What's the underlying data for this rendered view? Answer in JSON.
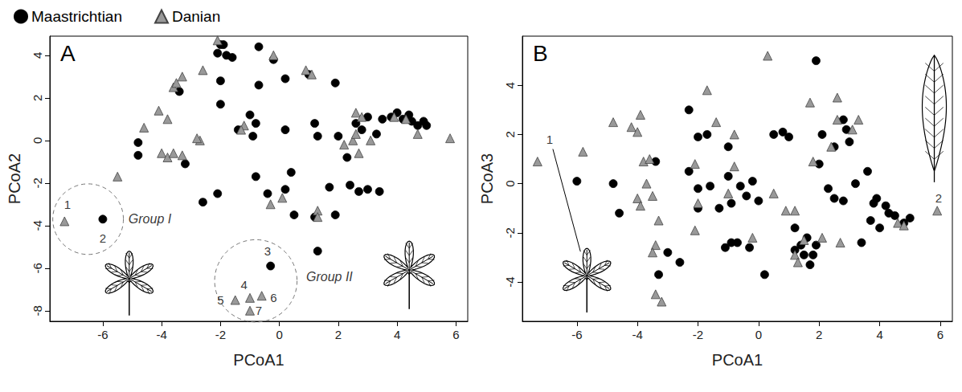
{
  "chart_data": [
    {
      "type": "scatter",
      "title": "A",
      "x_label": "PCoA1",
      "y_label": "PCoA2",
      "xlim": [
        -7.8,
        6.4
      ],
      "ylim": [
        -8.5,
        4.9
      ],
      "xticks": [
        -6,
        -4,
        -2,
        0,
        2,
        4,
        6
      ],
      "yticks": [
        -8,
        -6,
        -4,
        -2,
        0,
        2,
        4
      ],
      "grid": false,
      "legend": "top-left",
      "series": [
        {
          "name": "Maastrichtian",
          "color": "#000000",
          "marker": "circle",
          "values": [
            [
              -2.0,
              4.5
            ],
            [
              -1.9,
              4.5
            ],
            [
              -1.8,
              4.0
            ],
            [
              -1.6,
              3.9
            ],
            [
              -2.1,
              4.1
            ],
            [
              -0.7,
              4.4
            ],
            [
              -0.2,
              3.8
            ],
            [
              -3.4,
              2.3
            ],
            [
              -2.0,
              2.8
            ],
            [
              -0.7,
              2.6
            ],
            [
              0.2,
              2.9
            ],
            [
              1.0,
              3.1
            ],
            [
              1.9,
              2.7
            ],
            [
              -2.0,
              1.7
            ],
            [
              -1.0,
              1.2
            ],
            [
              -0.8,
              0.8
            ],
            [
              -1.4,
              0.5
            ],
            [
              -0.9,
              0.2
            ],
            [
              -4.8,
              -0.1
            ],
            [
              -4.8,
              -0.7
            ],
            [
              -3.2,
              -1.1
            ],
            [
              -0.8,
              -1.7
            ],
            [
              0.2,
              0.5
            ],
            [
              1.2,
              0.8
            ],
            [
              1.3,
              0.2
            ],
            [
              2.0,
              0.2
            ],
            [
              2.3,
              -0.8
            ],
            [
              2.6,
              0.8
            ],
            [
              2.8,
              0.5
            ],
            [
              3.0,
              1.1
            ],
            [
              3.3,
              0.3
            ],
            [
              3.5,
              1.0
            ],
            [
              3.8,
              1.1
            ],
            [
              4.0,
              1.3
            ],
            [
              4.2,
              1.0
            ],
            [
              4.4,
              1.2
            ],
            [
              4.5,
              0.9
            ],
            [
              4.7,
              0.7
            ],
            [
              4.9,
              0.9
            ],
            [
              5.0,
              0.7
            ],
            [
              0.4,
              -1.5
            ],
            [
              0.2,
              -2.3
            ],
            [
              0.5,
              -3.5
            ],
            [
              1.7,
              -2.2
            ],
            [
              1.2,
              -3.6
            ],
            [
              1.9,
              -3.5
            ],
            [
              2.4,
              -2.1
            ],
            [
              2.7,
              -2.4
            ],
            [
              3.0,
              -2.3
            ],
            [
              3.4,
              -2.4
            ],
            [
              1.3,
              -5.2
            ],
            [
              -2.6,
              -2.9
            ],
            [
              -2.1,
              -2.5
            ],
            [
              -6.0,
              -3.7
            ],
            [
              -0.3,
              -5.9
            ],
            [
              -0.4,
              -2.5
            ]
          ]
        },
        {
          "name": "Danian",
          "color": "#999999",
          "marker": "triangle",
          "values": [
            [
              -7.3,
              -3.8
            ],
            [
              -5.5,
              -1.7
            ],
            [
              -4.6,
              0.6
            ],
            [
              -4.1,
              1.4
            ],
            [
              -3.8,
              1.0
            ],
            [
              -3.6,
              2.5
            ],
            [
              -3.5,
              2.7
            ],
            [
              -3.3,
              3.0
            ],
            [
              -2.6,
              3.3
            ],
            [
              -2.1,
              4.7
            ],
            [
              -4.0,
              -0.6
            ],
            [
              -3.8,
              -0.8
            ],
            [
              -3.6,
              -0.6
            ],
            [
              -3.3,
              -0.7
            ],
            [
              -2.7,
              0.0
            ],
            [
              -2.8,
              0.1
            ],
            [
              -1.2,
              0.7
            ],
            [
              -0.2,
              4.0
            ],
            [
              0.9,
              3.3
            ],
            [
              1.1,
              3.1
            ],
            [
              -0.3,
              -3.0
            ],
            [
              0.1,
              -2.7
            ],
            [
              1.3,
              -3.3
            ],
            [
              1.3,
              -3.6
            ],
            [
              2.2,
              -0.2
            ],
            [
              2.6,
              1.3
            ],
            [
              2.7,
              -0.6
            ],
            [
              2.8,
              1.1
            ],
            [
              2.5,
              0.0
            ],
            [
              3.1,
              0.0
            ],
            [
              3.9,
              1.1
            ],
            [
              4.3,
              1.0
            ],
            [
              4.7,
              0.3
            ],
            [
              5.8,
              0.1
            ],
            [
              2.6,
              0.3
            ],
            [
              -1.5,
              -7.5
            ],
            [
              -1.0,
              -7.4
            ],
            [
              -0.6,
              -7.3
            ],
            [
              -1.0,
              -8.0
            ],
            [
              -1.3,
              0.5
            ]
          ]
        }
      ],
      "annotations": [
        {
          "text": "1",
          "x": -7.2,
          "y": -3.0
        },
        {
          "text": "2",
          "x": -6.0,
          "y": -4.6
        },
        {
          "text": "3",
          "x": -0.4,
          "y": -5.2
        },
        {
          "text": "4",
          "x": -1.2,
          "y": -6.8
        },
        {
          "text": "5",
          "x": -2.0,
          "y": -7.5
        },
        {
          "text": "6",
          "x": -0.2,
          "y": -7.4
        },
        {
          "text": "7",
          "x": -0.7,
          "y": -8.0
        }
      ],
      "groups": [
        {
          "text": "Group I",
          "x": -4.4,
          "y": -3.7,
          "center": [
            -6.5,
            -3.7
          ],
          "radius": 1.2
        },
        {
          "text": "Group II",
          "x": 1.7,
          "y": -6.4,
          "center": [
            -0.8,
            -6.6
          ],
          "radius": 1.4
        }
      ]
    },
    {
      "type": "scatter",
      "title": "B",
      "x_label": "PCoA1",
      "y_label": "PCoA3",
      "xlim": [
        -7.8,
        6.4
      ],
      "ylim": [
        -5.6,
        6.0
      ],
      "xticks": [
        -6,
        -4,
        -2,
        0,
        2,
        4,
        6
      ],
      "yticks": [
        -4,
        -2,
        0,
        2,
        4
      ],
      "grid": false,
      "series": [
        {
          "name": "Maastrichtian",
          "color": "#000000",
          "marker": "circle",
          "values": [
            [
              -6.0,
              0.1
            ],
            [
              -4.8,
              0.0
            ],
            [
              -4.6,
              -1.2
            ],
            [
              -3.4,
              0.9
            ],
            [
              -3.3,
              -3.7
            ],
            [
              -3.0,
              -2.8
            ],
            [
              -2.6,
              -3.2
            ],
            [
              -2.3,
              3.0
            ],
            [
              -2.0,
              1.9
            ],
            [
              -1.7,
              2.0
            ],
            [
              -2.3,
              0.5
            ],
            [
              -2.0,
              -0.2
            ],
            [
              -1.6,
              -0.1
            ],
            [
              -2.0,
              -1.0
            ],
            [
              -1.3,
              -1.0
            ],
            [
              -1.0,
              1.5
            ],
            [
              -1.0,
              0.3
            ],
            [
              -0.9,
              -0.8
            ],
            [
              -0.9,
              -2.4
            ],
            [
              -0.6,
              -0.1
            ],
            [
              -0.4,
              -0.5
            ],
            [
              -0.2,
              0.1
            ],
            [
              0.0,
              -0.7
            ],
            [
              -0.3,
              -2.6
            ],
            [
              -0.7,
              -2.4
            ],
            [
              -1.1,
              -2.6
            ],
            [
              0.2,
              -3.7
            ],
            [
              0.5,
              2.0
            ],
            [
              0.8,
              2.1
            ],
            [
              1.0,
              1.9
            ],
            [
              1.2,
              -1.8
            ],
            [
              1.4,
              -2.5
            ],
            [
              1.2,
              -2.7
            ],
            [
              1.5,
              -2.9
            ],
            [
              1.7,
              -3.3
            ],
            [
              1.9,
              -2.5
            ],
            [
              1.6,
              -2.2
            ],
            [
              1.8,
              -2.9
            ],
            [
              1.9,
              5.0
            ],
            [
              2.0,
              0.8
            ],
            [
              2.1,
              2.0
            ],
            [
              2.3,
              -0.2
            ],
            [
              2.5,
              -0.6
            ],
            [
              2.8,
              2.6
            ],
            [
              2.9,
              2.2
            ],
            [
              2.8,
              -0.7
            ],
            [
              3.0,
              1.7
            ],
            [
              3.2,
              0.0
            ],
            [
              3.4,
              -2.4
            ],
            [
              3.6,
              0.5
            ],
            [
              3.7,
              -1.5
            ],
            [
              3.9,
              -0.6
            ],
            [
              4.0,
              -1.8
            ],
            [
              4.2,
              -0.9
            ],
            [
              4.3,
              -1.2
            ],
            [
              4.5,
              -1.3
            ],
            [
              4.8,
              -1.6
            ],
            [
              5.0,
              -1.4
            ],
            [
              3.8,
              -0.8
            ],
            [
              2.5,
              1.5
            ]
          ]
        },
        {
          "name": "Danian",
          "color": "#999999",
          "marker": "triangle",
          "values": [
            [
              -7.3,
              0.9
            ],
            [
              -5.8,
              1.3
            ],
            [
              -4.8,
              2.5
            ],
            [
              -4.2,
              2.3
            ],
            [
              -3.9,
              2.8
            ],
            [
              -4.0,
              -0.6
            ],
            [
              -4.0,
              2.1
            ],
            [
              -3.8,
              0.9
            ],
            [
              -3.6,
              1.0
            ],
            [
              -3.7,
              0.0
            ],
            [
              -3.9,
              -0.9
            ],
            [
              -3.5,
              -0.5
            ],
            [
              -3.4,
              -2.5
            ],
            [
              -3.5,
              -2.8
            ],
            [
              -3.4,
              -4.5
            ],
            [
              -3.2,
              -4.8
            ],
            [
              -3.3,
              -1.5
            ],
            [
              -2.1,
              0.8
            ],
            [
              -2.0,
              -0.8
            ],
            [
              -2.1,
              -1.9
            ],
            [
              -1.7,
              3.8
            ],
            [
              -1.4,
              2.5
            ],
            [
              -0.8,
              2.0
            ],
            [
              -0.8,
              0.7
            ],
            [
              -1.0,
              -0.4
            ],
            [
              -0.2,
              -2.2
            ],
            [
              0.3,
              5.2
            ],
            [
              0.9,
              -1.1
            ],
            [
              1.2,
              -2.9
            ],
            [
              1.3,
              -3.2
            ],
            [
              1.5,
              -2.3
            ],
            [
              1.2,
              -1.1
            ],
            [
              0.5,
              -0.4
            ],
            [
              1.7,
              3.3
            ],
            [
              1.8,
              0.9
            ],
            [
              2.4,
              1.5
            ],
            [
              2.6,
              3.5
            ],
            [
              2.6,
              2.6
            ],
            [
              2.7,
              -2.4
            ],
            [
              3.1,
              2.2
            ],
            [
              3.3,
              2.6
            ],
            [
              4.6,
              -1.6
            ],
            [
              4.8,
              -1.7
            ],
            [
              5.9,
              -1.1
            ],
            [
              2.1,
              -2.2
            ]
          ]
        }
      ],
      "annotations": [
        {
          "text": "1",
          "x": -6.9,
          "y": 1.8
        },
        {
          "text": "2",
          "x": 5.95,
          "y": -0.6
        }
      ]
    }
  ]
}
